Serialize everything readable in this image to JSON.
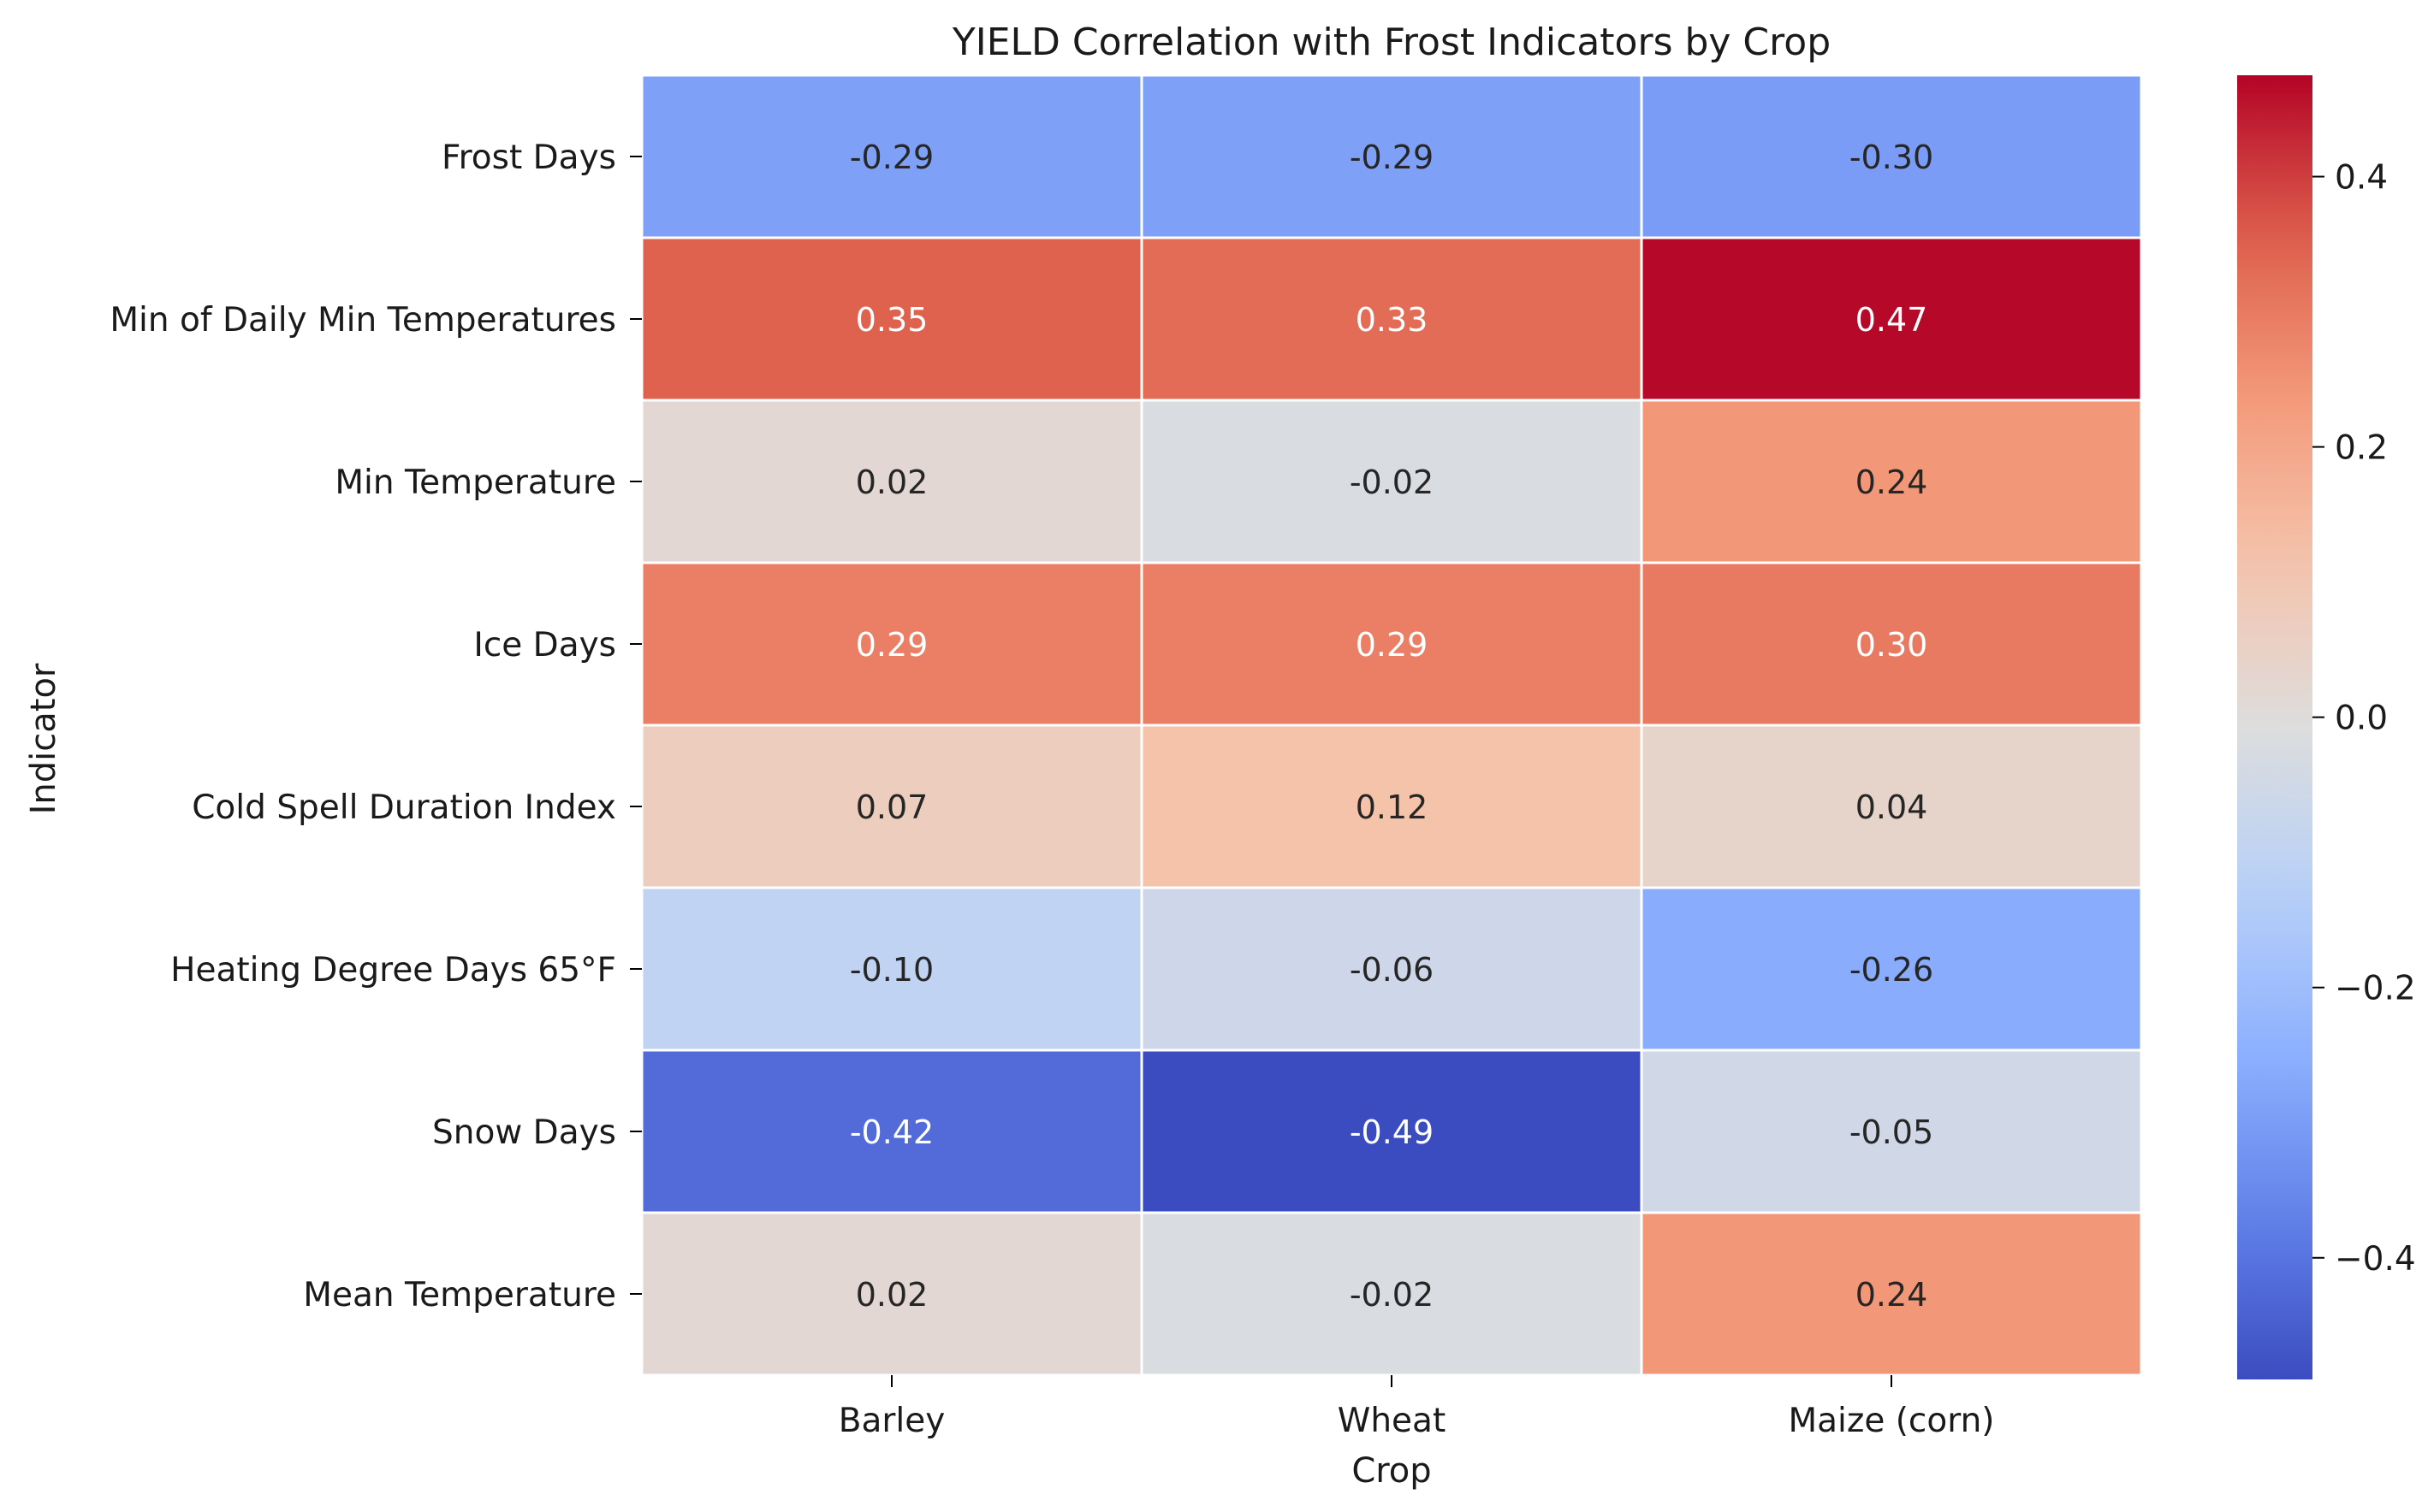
{
  "chart_data": {
    "type": "heatmap",
    "title": "YIELD Correlation with Frost Indicators by Crop",
    "xlabel": "Crop",
    "ylabel": "Indicator",
    "columns": [
      "Barley",
      "Wheat",
      "Maize (corn)"
    ],
    "rows": [
      "Frost Days",
      "Min of Daily Min Temperatures",
      "Min Temperature",
      "Ice Days",
      "Cold Spell Duration Index",
      "Heating Degree Days 65°F",
      "Snow Days",
      "Mean Temperature"
    ],
    "values": [
      [
        -0.29,
        -0.29,
        -0.3
      ],
      [
        0.35,
        0.33,
        0.47
      ],
      [
        0.02,
        -0.02,
        0.24
      ],
      [
        0.29,
        0.29,
        0.3
      ],
      [
        0.07,
        0.12,
        0.04
      ],
      [
        -0.1,
        -0.06,
        -0.26
      ],
      [
        -0.42,
        -0.49,
        -0.05
      ],
      [
        0.02,
        -0.02,
        0.24
      ]
    ],
    "colorbar": {
      "min": -0.49,
      "max": 0.475,
      "ticks": [
        0.4,
        0.2,
        0.0,
        -0.2,
        -0.4
      ],
      "tick_labels": [
        "0.4",
        "0.2",
        "0.0",
        "−0.2",
        "−0.4"
      ],
      "colormap": "coolwarm"
    },
    "annotation_format": "0.00",
    "grid": false
  }
}
